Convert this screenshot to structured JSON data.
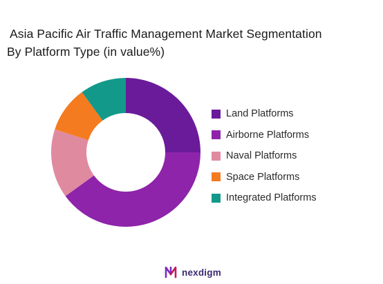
{
  "chart_data": {
    "type": "pie",
    "title_line_1": "Asia Pacific Air Traffic Management Market Segmentation",
    "title_line_2": "By Platform Type (in value%)",
    "categories": [
      "Land Platforms",
      "Airborne Platforms",
      "Naval Platforms",
      "Space Platforms",
      "Integrated Platforms"
    ],
    "values": [
      25,
      40,
      15,
      10,
      10
    ],
    "colors": [
      "#6a1b9a",
      "#8e24aa",
      "#e08aa0",
      "#f47b20",
      "#12998a"
    ],
    "donut": true,
    "start_angle_deg": 0,
    "legend_position": "right"
  },
  "brand": {
    "name": "nexdigm",
    "logo_icon": "nexdigm-logo-icon"
  }
}
